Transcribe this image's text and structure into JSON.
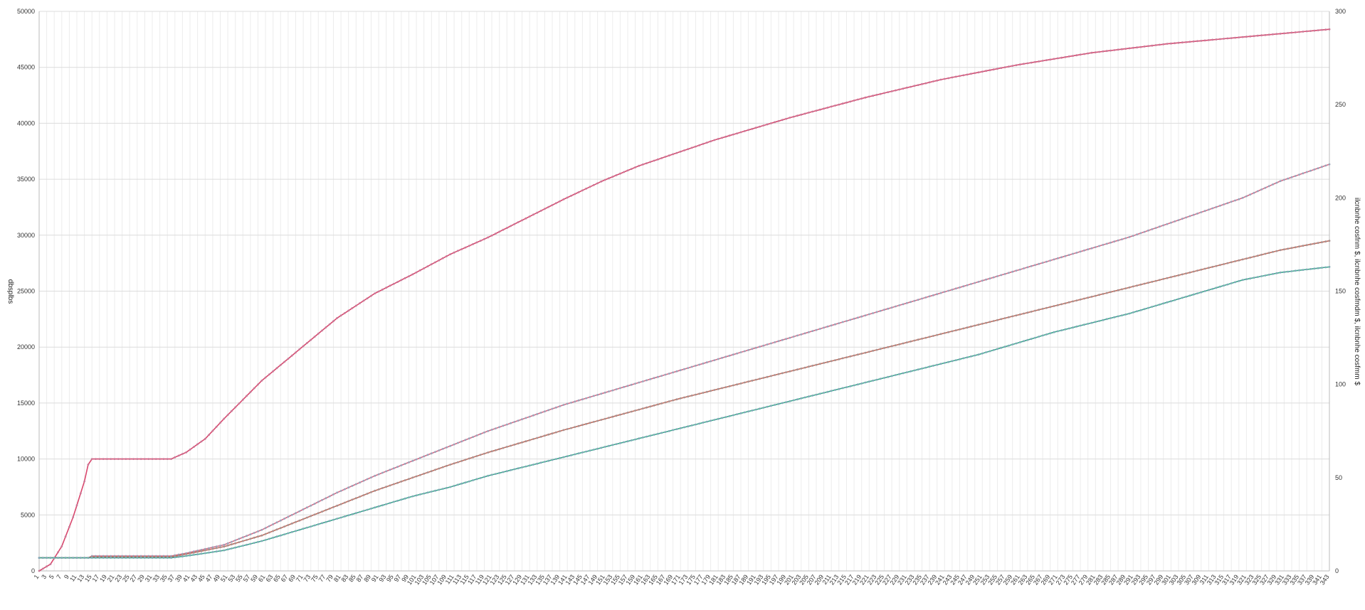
{
  "chart_data": {
    "type": "line",
    "title": "",
    "ylabel_left": "dbsplbs",
    "ylabel_right": "ilcnbnhe cosfnm $, ilcnbnhe cosfmdm $, ilcnbnhe cosfmm $",
    "x_start": 1,
    "x_end": 343,
    "x_tick_step": 2,
    "y_left_lim": [
      0,
      50000
    ],
    "y_left_ticks": [
      0,
      5000,
      10000,
      15000,
      20000,
      25000,
      30000,
      35000,
      40000,
      45000,
      50000
    ],
    "y_right_lim": [
      0,
      300
    ],
    "y_right_ticks": [
      0,
      50,
      100,
      150,
      200,
      250,
      300
    ],
    "grid": true,
    "legend": "none",
    "series": [
      {
        "axis": "left",
        "color": "#d9476d",
        "marker_color": "#c87896",
        "points": [
          [
            1,
            0
          ],
          [
            4,
            600
          ],
          [
            7,
            2200
          ],
          [
            10,
            4800
          ],
          [
            13,
            8000
          ],
          [
            14,
            9500
          ],
          [
            15,
            10000
          ],
          [
            36,
            10000
          ],
          [
            40,
            10600
          ],
          [
            45,
            11800
          ],
          [
            50,
            13600
          ],
          [
            60,
            17000
          ],
          [
            70,
            19800
          ],
          [
            80,
            22600
          ],
          [
            90,
            24800
          ],
          [
            100,
            26500
          ],
          [
            110,
            28300
          ],
          [
            120,
            29800
          ],
          [
            130,
            31500
          ],
          [
            140,
            33200
          ],
          [
            150,
            34800
          ],
          [
            160,
            36200
          ],
          [
            180,
            38500
          ],
          [
            200,
            40500
          ],
          [
            220,
            42300
          ],
          [
            240,
            43900
          ],
          [
            260,
            45200
          ],
          [
            280,
            46300
          ],
          [
            300,
            47100
          ],
          [
            343,
            48400
          ]
        ]
      },
      {
        "axis": "right",
        "color": "#d16b87",
        "marker_color": "#9aa3b8",
        "points": [
          [
            1,
            7
          ],
          [
            14,
            7
          ],
          [
            15,
            8
          ],
          [
            36,
            8
          ],
          [
            40,
            9.5
          ],
          [
            50,
            14
          ],
          [
            60,
            22
          ],
          [
            70,
            32
          ],
          [
            80,
            42
          ],
          [
            90,
            51
          ],
          [
            100,
            59
          ],
          [
            110,
            67
          ],
          [
            120,
            75
          ],
          [
            130,
            82
          ],
          [
            140,
            89
          ],
          [
            150,
            95
          ],
          [
            160,
            101
          ],
          [
            170,
            107
          ],
          [
            180,
            113
          ],
          [
            190,
            119
          ],
          [
            200,
            125
          ],
          [
            210,
            131
          ],
          [
            220,
            137
          ],
          [
            230,
            143
          ],
          [
            240,
            149
          ],
          [
            250,
            155
          ],
          [
            260,
            161
          ],
          [
            270,
            167
          ],
          [
            280,
            173
          ],
          [
            290,
            179
          ],
          [
            300,
            186
          ],
          [
            310,
            193
          ],
          [
            320,
            200
          ],
          [
            330,
            209
          ],
          [
            343,
            218
          ]
        ]
      },
      {
        "axis": "right",
        "color": "#c06a5c",
        "marker_color": "#a8908e",
        "points": [
          [
            1,
            7
          ],
          [
            14,
            7
          ],
          [
            15,
            7.5
          ],
          [
            36,
            7.5
          ],
          [
            40,
            9
          ],
          [
            50,
            13
          ],
          [
            60,
            19
          ],
          [
            70,
            27
          ],
          [
            80,
            35
          ],
          [
            90,
            43
          ],
          [
            100,
            50
          ],
          [
            110,
            57
          ],
          [
            120,
            63.5
          ],
          [
            130,
            69.5
          ],
          [
            140,
            75.5
          ],
          [
            150,
            81
          ],
          [
            160,
            86.5
          ],
          [
            170,
            92
          ],
          [
            180,
            97
          ],
          [
            190,
            102
          ],
          [
            200,
            107
          ],
          [
            210,
            112
          ],
          [
            220,
            117
          ],
          [
            230,
            122
          ],
          [
            240,
            127
          ],
          [
            250,
            132
          ],
          [
            260,
            137
          ],
          [
            270,
            142
          ],
          [
            280,
            147
          ],
          [
            290,
            152
          ],
          [
            300,
            157
          ],
          [
            310,
            162
          ],
          [
            320,
            167
          ],
          [
            330,
            172
          ],
          [
            343,
            177
          ]
        ]
      },
      {
        "axis": "right",
        "color": "#3aa889",
        "marker_color": "#7fa7b8",
        "points": [
          [
            1,
            7
          ],
          [
            14,
            7
          ],
          [
            15,
            7
          ],
          [
            36,
            7
          ],
          [
            40,
            8
          ],
          [
            50,
            11
          ],
          [
            60,
            16
          ],
          [
            70,
            22
          ],
          [
            80,
            28
          ],
          [
            90,
            34
          ],
          [
            100,
            40
          ],
          [
            110,
            45
          ],
          [
            120,
            51
          ],
          [
            130,
            56
          ],
          [
            140,
            61
          ],
          [
            150,
            66
          ],
          [
            160,
            71
          ],
          [
            170,
            76
          ],
          [
            180,
            81
          ],
          [
            190,
            86
          ],
          [
            200,
            91
          ],
          [
            210,
            96
          ],
          [
            220,
            101
          ],
          [
            230,
            106
          ],
          [
            240,
            111
          ],
          [
            250,
            116
          ],
          [
            260,
            122
          ],
          [
            270,
            128
          ],
          [
            280,
            133
          ],
          [
            290,
            138
          ],
          [
            300,
            144
          ],
          [
            310,
            150
          ],
          [
            320,
            156
          ],
          [
            330,
            160
          ],
          [
            343,
            163
          ]
        ]
      }
    ]
  }
}
